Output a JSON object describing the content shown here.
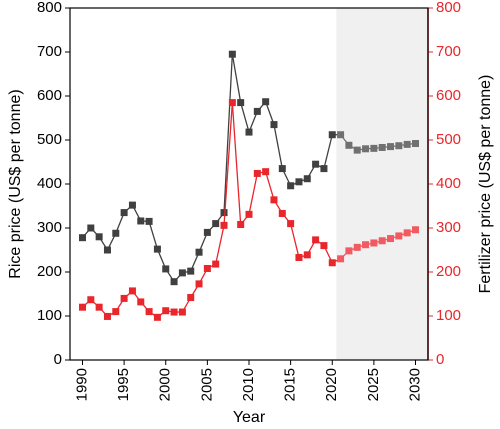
{
  "chart_data": {
    "type": "line",
    "xlabel": "Year",
    "ylabel_left": "Rice price (US$ per tonne)",
    "ylabel_right": "Fertilizer price (US$ per tonne)",
    "xlim": [
      1988.5,
      2031.5
    ],
    "ylim_left": [
      0,
      800
    ],
    "ylim_right": [
      0,
      800
    ],
    "x_ticks": [
      1990,
      1995,
      2000,
      2005,
      2010,
      2015,
      2020,
      2025,
      2030
    ],
    "y_ticks": [
      0,
      100,
      200,
      300,
      400,
      500,
      600,
      700,
      800
    ],
    "projection_region": [
      2020.5,
      2031.5
    ],
    "grid": false,
    "legend": "none",
    "colors": {
      "rice": "#404040",
      "rice_projection": "#707070",
      "fertilizer": "#e8262c",
      "fertilizer_projection": "#f05a60",
      "right_axis": "#e8262c",
      "shade": "#f0f0f0"
    },
    "series": [
      {
        "key": "rice",
        "axis": "left",
        "x": [
          1990,
          1991,
          1992,
          1993,
          1994,
          1995,
          1996,
          1997,
          1998,
          1999,
          2000,
          2001,
          2002,
          2003,
          2004,
          2005,
          2006,
          2007,
          2008,
          2009,
          2010,
          2011,
          2012,
          2013,
          2014,
          2015,
          2016,
          2017,
          2018,
          2019,
          2020,
          2021,
          2022,
          2023,
          2024,
          2025,
          2026,
          2027,
          2028,
          2029,
          2030
        ],
        "values": [
          278,
          300,
          280,
          250,
          288,
          335,
          352,
          316,
          315,
          252,
          207,
          178,
          198,
          202,
          245,
          290,
          310,
          335,
          695,
          585,
          518,
          565,
          587,
          535,
          435,
          396,
          405,
          412,
          445,
          435,
          512,
          512,
          488,
          477,
          480,
          481,
          483,
          485,
          487,
          490,
          492
        ]
      },
      {
        "key": "fertilizer",
        "axis": "right",
        "x": [
          1990,
          1991,
          1992,
          1993,
          1994,
          1995,
          1996,
          1997,
          1998,
          1999,
          2000,
          2001,
          2002,
          2003,
          2004,
          2005,
          2006,
          2007,
          2008,
          2009,
          2010,
          2011,
          2012,
          2013,
          2014,
          2015,
          2016,
          2017,
          2018,
          2019,
          2020,
          2021,
          2022,
          2023,
          2024,
          2025,
          2026,
          2027,
          2028,
          2029,
          2030
        ],
        "values": [
          120,
          137,
          120,
          99,
          110,
          140,
          157,
          132,
          110,
          97,
          112,
          109,
          109,
          142,
          173,
          208,
          218,
          306,
          585,
          308,
          331,
          424,
          428,
          364,
          333,
          310,
          233,
          239,
          273,
          260,
          221,
          230,
          248,
          256,
          262,
          266,
          271,
          276,
          282,
          289,
          296
        ]
      }
    ]
  }
}
